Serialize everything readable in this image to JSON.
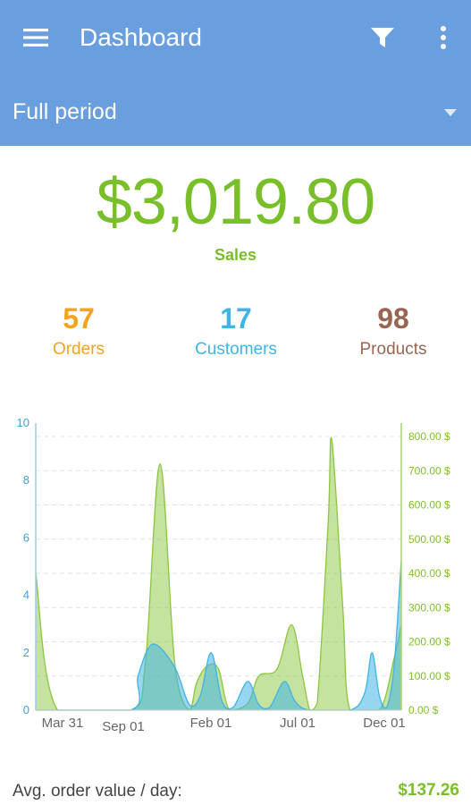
{
  "appbar": {
    "title": "Dashboard",
    "menu_icon": "menu-icon",
    "filter_icon": "filter-icon",
    "more_icon": "more-vert-icon",
    "color": "#6a9fdf"
  },
  "period": {
    "selected": "Full period",
    "caret_icon": "dropdown-caret-icon"
  },
  "summary": {
    "sales_value": "$3,019.80",
    "sales_label": "Sales",
    "sales_color": "#79bf2a"
  },
  "stats": {
    "orders": {
      "value": "57",
      "label": "Orders",
      "color": "#f5a31b"
    },
    "customers": {
      "value": "17",
      "label": "Customers",
      "color": "#3fb4e6"
    },
    "products": {
      "value": "98",
      "label": "Products",
      "color": "#9a6550"
    }
  },
  "chart_data": {
    "type": "area",
    "title": "",
    "xlabel": "",
    "ylabel": "",
    "x_tick_labels": [
      "Mar 31",
      "Sep 01",
      "Feb 01",
      "Jul 01",
      "Dec 01"
    ],
    "y_left_ticks": [
      "0",
      "2",
      "4",
      "6",
      "8",
      "10"
    ],
    "y_left_range": [
      0,
      10
    ],
    "y_right_ticks": [
      "0.00 $",
      "100.00 $",
      "200.00 $",
      "300.00 $",
      "400.00 $",
      "500.00 $",
      "600.00 $",
      "700.00 $",
      "800.00 $"
    ],
    "y_right_range": [
      0,
      800
    ],
    "grid": true,
    "series": [
      {
        "axis": "right",
        "color": "#8cc63f",
        "values": [
          [
            0,
            400
          ],
          [
            0.06,
            0
          ],
          [
            0.26,
            0
          ],
          [
            0.3,
            140
          ],
          [
            0.34,
            720
          ],
          [
            0.38,
            140
          ],
          [
            0.42,
            0
          ],
          [
            0.44,
            80
          ],
          [
            0.47,
            130
          ],
          [
            0.5,
            120
          ],
          [
            0.53,
            0
          ],
          [
            0.58,
            20
          ],
          [
            0.61,
            100
          ],
          [
            0.66,
            120
          ],
          [
            0.7,
            250
          ],
          [
            0.73,
            100
          ],
          [
            0.75,
            0
          ],
          [
            0.77,
            20
          ],
          [
            0.8,
            550
          ],
          [
            0.81,
            790
          ],
          [
            0.84,
            300
          ],
          [
            0.86,
            0
          ],
          [
            0.94,
            0
          ],
          [
            0.98,
            150
          ],
          [
            1.0,
            250
          ]
        ]
      },
      {
        "axis": "left",
        "color": "#3fb4e6",
        "values": [
          [
            0,
            0
          ],
          [
            0.26,
            0
          ],
          [
            0.28,
            1.2
          ],
          [
            0.32,
            2.3
          ],
          [
            0.38,
            1.5
          ],
          [
            0.42,
            0.2
          ],
          [
            0.45,
            0.5
          ],
          [
            0.48,
            2.0
          ],
          [
            0.51,
            0.3
          ],
          [
            0.54,
            0.1
          ],
          [
            0.58,
            1.0
          ],
          [
            0.61,
            0.2
          ],
          [
            0.64,
            0.1
          ],
          [
            0.68,
            1.0
          ],
          [
            0.71,
            0.3
          ],
          [
            0.75,
            0
          ],
          [
            0.86,
            0
          ],
          [
            0.9,
            0.6
          ],
          [
            0.92,
            2.0
          ],
          [
            0.94,
            0.5
          ],
          [
            0.96,
            0.1
          ],
          [
            0.98,
            1.5
          ],
          [
            1.0,
            5.2
          ]
        ]
      }
    ]
  },
  "footer": {
    "avg_label": "Avg. order value / day:",
    "avg_value": "$137.26"
  }
}
